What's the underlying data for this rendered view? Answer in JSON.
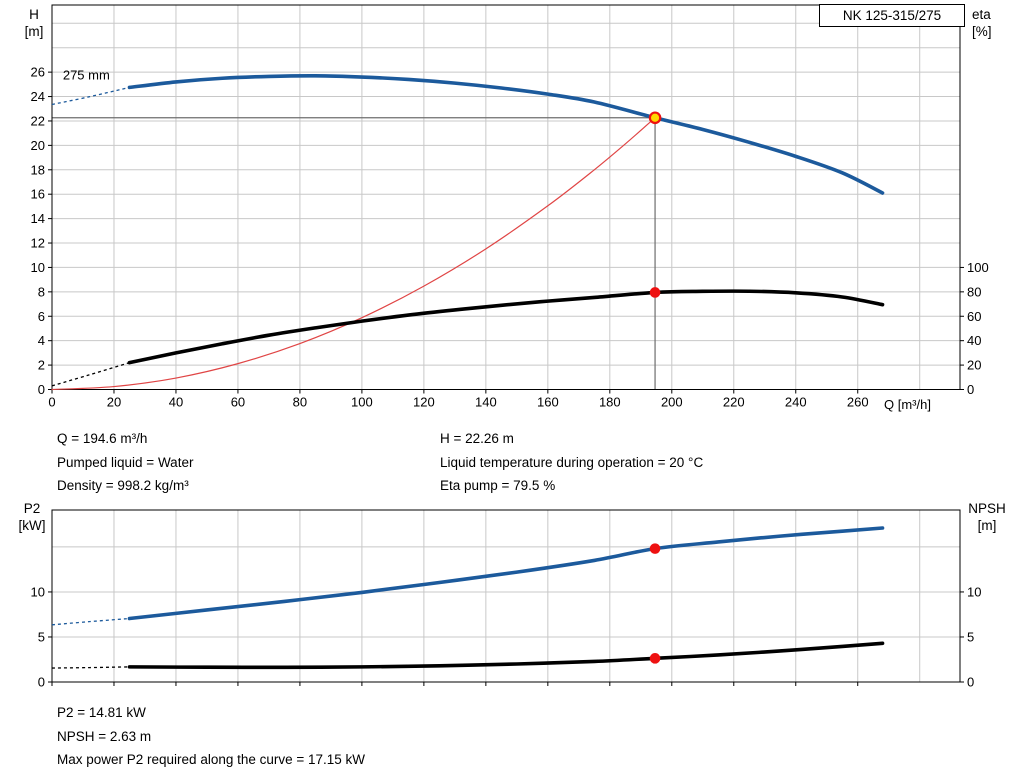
{
  "colors": {
    "curve_blue": "#1c5a9c",
    "curve_black": "#000000",
    "curve_red": "#e04545",
    "marker_red": "#ee1111",
    "marker_yellow": "#ffd800",
    "grid": "#c8c8c8",
    "guide": "#6e6e6e",
    "frame": "#000000"
  },
  "chart_data": [
    {
      "id": "head-eta-chart",
      "type": "line",
      "pump_type": "NK 125-315/275",
      "curve_label": "275 mm",
      "x_label": "Q [m³/h]",
      "y_left_label": {
        "line1": "H",
        "line2": "[m]"
      },
      "y_right_label": {
        "line1": "eta",
        "line2": "[%]"
      },
      "xlim": [
        0,
        293
      ],
      "ylim": [
        0,
        31.5
      ],
      "right_axis_factor": 0.1,
      "show_x_tick_labels": true,
      "x_ticks": [
        0,
        20,
        40,
        60,
        80,
        100,
        120,
        140,
        160,
        180,
        200,
        220,
        240,
        260
      ],
      "x_grid": [
        20,
        40,
        60,
        80,
        100,
        120,
        140,
        160,
        180,
        200,
        220,
        240,
        260,
        280
      ],
      "y_left_ticks": [
        0,
        2,
        4,
        6,
        8,
        10,
        12,
        14,
        16,
        18,
        20,
        22,
        24,
        26
      ],
      "y_grid": [
        2,
        4,
        6,
        8,
        10,
        12,
        14,
        16,
        18,
        20,
        22,
        24,
        26,
        28,
        30
      ],
      "y_right_ticks": [
        0,
        20,
        40,
        60,
        80,
        100
      ],
      "guides": [
        {
          "from": [
            194.6,
            0
          ],
          "to": [
            194.6,
            22.26
          ]
        },
        {
          "from": [
            0,
            22.26
          ],
          "to": [
            194.6,
            22.26
          ]
        }
      ],
      "series": [
        {
          "name": "head-curve-extension",
          "axis": "left",
          "color": "curve_blue",
          "width": 1.3,
          "dash": "3,3",
          "points": [
            [
              0,
              23.35
            ],
            [
              12,
              23.98
            ],
            [
              25,
              24.75
            ]
          ]
        },
        {
          "name": "eta-curve-extension",
          "axis": "right",
          "color": "curve_black",
          "width": 1.3,
          "dash": "3,3",
          "points": [
            [
              0,
              3
            ],
            [
              12,
              12
            ],
            [
              25,
              22
            ]
          ]
        },
        {
          "name": "system-curve",
          "axis": "left",
          "color": "curve_red",
          "width": 1.2,
          "points": [
            [
              0,
              0
            ],
            [
              20,
              0.24
            ],
            [
              40,
              0.94
            ],
            [
              60,
              2.12
            ],
            [
              80,
              3.76
            ],
            [
              100,
              5.88
            ],
            [
              120,
              8.47
            ],
            [
              140,
              11.52
            ],
            [
              160,
              15.05
            ],
            [
              175,
              18.0
            ],
            [
              185,
              20.12
            ],
            [
              194.6,
              22.26
            ]
          ]
        },
        {
          "name": "head-curve",
          "axis": "left",
          "color": "curve_blue",
          "width": 3.6,
          "points": [
            [
              25,
              24.75
            ],
            [
              40,
              25.2
            ],
            [
              55,
              25.5
            ],
            [
              70,
              25.65
            ],
            [
              85,
              25.7
            ],
            [
              100,
              25.6
            ],
            [
              115,
              25.4
            ],
            [
              130,
              25.1
            ],
            [
              145,
              24.7
            ],
            [
              160,
              24.2
            ],
            [
              175,
              23.55
            ],
            [
              194.6,
              22.26
            ],
            [
              210,
              21.3
            ],
            [
              225,
              20.25
            ],
            [
              240,
              19.1
            ],
            [
              255,
              17.75
            ],
            [
              268,
              16.1
            ]
          ]
        },
        {
          "name": "eta-curve",
          "axis": "right",
          "color": "curve_black",
          "width": 3.6,
          "points": [
            [
              25,
              22
            ],
            [
              40,
              30
            ],
            [
              55,
              37.5
            ],
            [
              70,
              44.5
            ],
            [
              85,
              50.5
            ],
            [
              100,
              56
            ],
            [
              115,
              61
            ],
            [
              130,
              65.2
            ],
            [
              145,
              69
            ],
            [
              160,
              72.4
            ],
            [
              175,
              75.4
            ],
            [
              194.6,
              79.5
            ],
            [
              210,
              80.4
            ],
            [
              225,
              80.5
            ],
            [
              240,
              79.2
            ],
            [
              255,
              75.8
            ],
            [
              268,
              69.5
            ]
          ]
        }
      ],
      "markers": [
        {
          "name": "duty-point-marker",
          "x": 194.6,
          "y": 22.26,
          "axis": "left",
          "fill": "marker_yellow",
          "stroke": "marker_red",
          "r": 5.2,
          "stroke_width": 2.2
        },
        {
          "name": "eta-point-marker",
          "x": 194.6,
          "y": 79.5,
          "axis": "right",
          "fill": "marker_red",
          "stroke": "marker_red",
          "r": 4.8,
          "stroke_width": 1
        }
      ],
      "annotations": [
        {
          "text": "275 mm",
          "x": 3.5,
          "y": 25.4,
          "axis": "left"
        }
      ]
    },
    {
      "id": "p2-npsh-chart",
      "type": "line",
      "y_left_label": {
        "line1": "P2",
        "line2": "[kW]"
      },
      "y_right_label": {
        "line1": "NPSH",
        "line2": "[m]"
      },
      "xlim": [
        0,
        293
      ],
      "ylim": [
        0,
        19.1
      ],
      "right_axis_factor": 1,
      "show_x_tick_labels": false,
      "x_ticks": [
        0,
        20,
        40,
        60,
        80,
        100,
        120,
        140,
        160,
        180,
        200,
        220,
        240,
        260
      ],
      "x_grid": [
        20,
        40,
        60,
        80,
        100,
        120,
        140,
        160,
        180,
        200,
        220,
        240,
        260,
        280
      ],
      "y_left_ticks": [
        0,
        5,
        10
      ],
      "y_grid": [
        5,
        10,
        15
      ],
      "y_right_ticks": [
        0,
        5,
        10
      ],
      "guides": [],
      "series": [
        {
          "name": "p2-curve-extension",
          "axis": "left",
          "color": "curve_blue",
          "width": 1.3,
          "dash": "3,3",
          "points": [
            [
              0,
              6.35
            ],
            [
              12,
              6.7
            ],
            [
              25,
              7.05
            ]
          ]
        },
        {
          "name": "npsh-curve-extension",
          "axis": "right",
          "color": "curve_black",
          "width": 1.3,
          "dash": "3,3",
          "points": [
            [
              0,
              1.55
            ],
            [
              12,
              1.6
            ],
            [
              25,
              1.68
            ]
          ]
        },
        {
          "name": "p2-curve",
          "axis": "left",
          "color": "curve_blue",
          "width": 3.6,
          "points": [
            [
              25,
              7.05
            ],
            [
              50,
              8.0
            ],
            [
              75,
              8.95
            ],
            [
              100,
              9.95
            ],
            [
              125,
              11.05
            ],
            [
              150,
              12.2
            ],
            [
              175,
              13.5
            ],
            [
              194.6,
              14.81
            ],
            [
              215,
              15.55
            ],
            [
              235,
              16.2
            ],
            [
              255,
              16.75
            ],
            [
              268,
              17.1
            ]
          ]
        },
        {
          "name": "npsh-curve",
          "axis": "right",
          "color": "curve_black",
          "width": 3.6,
          "points": [
            [
              25,
              1.68
            ],
            [
              50,
              1.64
            ],
            [
              75,
              1.63
            ],
            [
              100,
              1.68
            ],
            [
              125,
              1.8
            ],
            [
              150,
              2.0
            ],
            [
              175,
              2.28
            ],
            [
              194.6,
              2.63
            ],
            [
              215,
              3.0
            ],
            [
              235,
              3.45
            ],
            [
              255,
              3.95
            ],
            [
              268,
              4.3
            ]
          ]
        }
      ],
      "markers": [
        {
          "name": "p2-point-marker",
          "x": 194.6,
          "y": 14.81,
          "axis": "left",
          "fill": "marker_red",
          "stroke": "marker_red",
          "r": 4.8,
          "stroke_width": 1
        },
        {
          "name": "npsh-point-marker",
          "x": 194.6,
          "y": 2.63,
          "axis": "right",
          "fill": "marker_red",
          "stroke": "marker_red",
          "r": 4.8,
          "stroke_width": 1
        }
      ],
      "annotations": []
    }
  ],
  "info_top": {
    "q": "Q = 194.6 m³/h",
    "pumped_liquid": "Pumped liquid = Water",
    "density": "Density = 998.2 kg/m³",
    "h": "H = 22.26 m",
    "temperature": "Liquid temperature during operation = 20 °C",
    "eta": "Eta pump = 79.5 %"
  },
  "info_bottom": {
    "p2": "P2 = 14.81 kW",
    "npsh": "NPSH = 2.63 m",
    "max_p2": "Max power P2 required along the curve = 17.15 kW"
  }
}
